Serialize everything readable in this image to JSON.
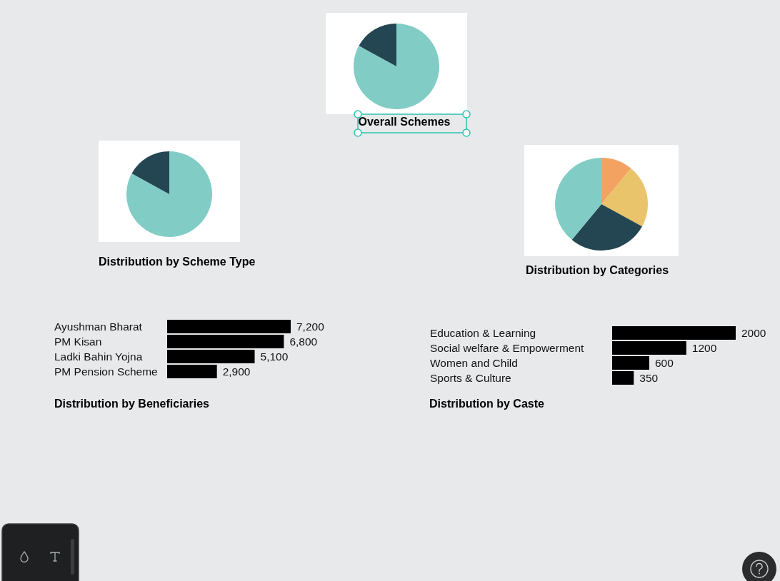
{
  "chart_data": [
    {
      "type": "pie",
      "title": "Overall Schemes",
      "categories": [
        null,
        null
      ],
      "values": [
        83,
        17
      ],
      "colors": [
        "#81cdc6",
        "#244653"
      ]
    },
    {
      "type": "pie",
      "title": "Distribution by Scheme Type",
      "categories": [
        null,
        null
      ],
      "values": [
        83,
        17
      ],
      "colors": [
        "#81cdc6",
        "#244653"
      ]
    },
    {
      "type": "pie",
      "title": "Distribution by Categories",
      "categories": [
        null,
        null,
        null,
        null
      ],
      "values": [
        11,
        22,
        28,
        39
      ],
      "colors": [
        "#f4a261",
        "#e9c46a",
        "#244653",
        "#81cdc6"
      ]
    },
    {
      "type": "bar",
      "orientation": "horizontal",
      "title": "Distribution by Beneficiaries",
      "categories": [
        "Ayushman Bharat",
        "PM Kisan",
        "Ladki Bahin Yojna",
        "PM Pension Scheme"
      ],
      "values": [
        7200,
        6800,
        5100,
        2900
      ],
      "value_labels": [
        "7,200",
        "6,800",
        "5,100",
        "2,900"
      ],
      "color": "#000000"
    },
    {
      "type": "bar",
      "orientation": "horizontal",
      "title": "Distribution by Caste",
      "categories": [
        "Education & Learning",
        "Social welfare & Empowerment",
        "Women and Child",
        "Sports & Culture"
      ],
      "values": [
        2000,
        1200,
        600,
        350
      ],
      "data_labels": true,
      "color": "#000000"
    }
  ]
}
